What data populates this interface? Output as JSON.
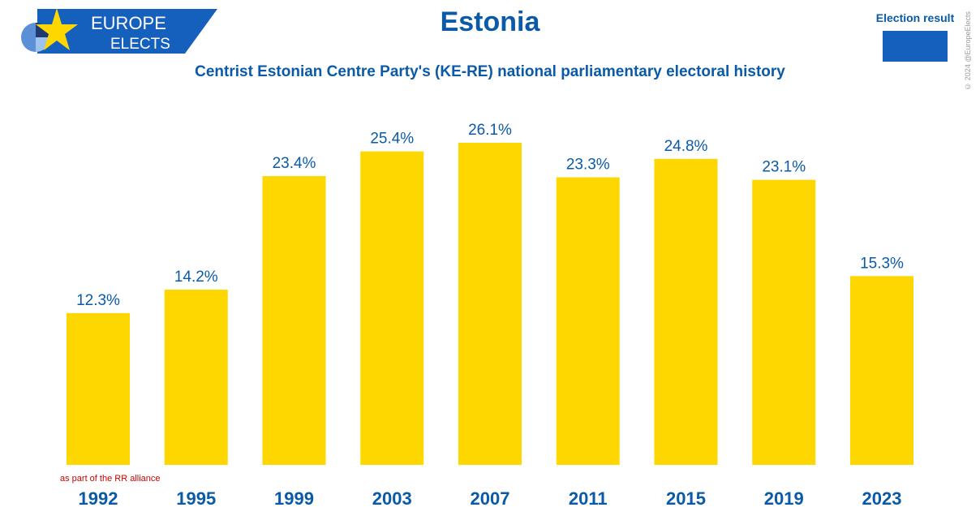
{
  "header": {
    "logo_line1": "EUROPE",
    "logo_line2": "ELECTS",
    "title": "Estonia",
    "subtitle": "Centrist Estonian Centre Party's (KE-RE) national parliamentary electoral history",
    "credit": "© 2024 @EuropeElects"
  },
  "legend": {
    "label": "Election result",
    "color": "#1560bd"
  },
  "colors": {
    "bar": "#ffd700",
    "label": "#0a5aa8",
    "note": "#cc0000",
    "brand": "#1560bd"
  },
  "chart_data": {
    "type": "bar",
    "categories": [
      "1992",
      "1995",
      "1999",
      "2003",
      "2007",
      "2011",
      "2015",
      "2019",
      "2023"
    ],
    "values": [
      12.3,
      14.2,
      23.4,
      25.4,
      26.1,
      23.3,
      24.8,
      23.1,
      15.3
    ],
    "value_labels": [
      "12.3%",
      "14.2%",
      "23.4%",
      "25.4%",
      "26.1%",
      "23.3%",
      "24.8%",
      "23.1%",
      "15.3%"
    ],
    "ylim": [
      0,
      26.1
    ],
    "grid": false,
    "legend_position": "top-right",
    "annotations": [
      {
        "category": "1992",
        "text": "as part of the RR alliance"
      }
    ]
  }
}
